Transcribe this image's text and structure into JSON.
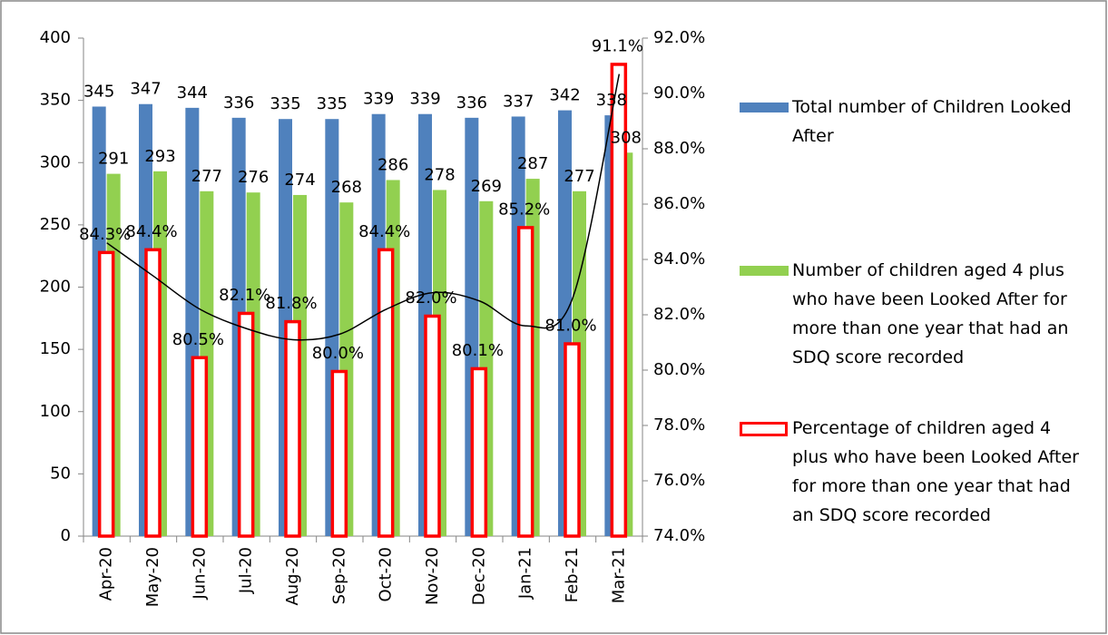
{
  "chart_data": {
    "type": "bar",
    "categories": [
      "Apr-20",
      "May-20",
      "Jun-20",
      "Jul-20",
      "Aug-20",
      "Sep-20",
      "Oct-20",
      "Nov-20",
      "Dec-20",
      "Jan-21",
      "Feb-21",
      "Mar-21"
    ],
    "series": [
      {
        "name": "Total number of Children Looked After",
        "color": "#4f81bd",
        "values": [
          345,
          347,
          344,
          336,
          335,
          335,
          339,
          339,
          336,
          337,
          342,
          338
        ]
      },
      {
        "name": "Number of children aged 4 plus who have been Looked After for more than one year that had an SDQ score recorded",
        "color": "#92d050",
        "values": [
          291,
          293,
          277,
          276,
          274,
          268,
          286,
          278,
          269,
          287,
          277,
          308
        ]
      },
      {
        "name": "Percentage of children aged 4 plus who have been Looked After for more than one year that had an SDQ score recorded",
        "color": "#ff0000",
        "axis": "y2",
        "values": [
          84.3,
          84.4,
          80.5,
          82.1,
          81.8,
          80.0,
          84.4,
          82.0,
          80.1,
          85.2,
          81.0,
          91.1
        ],
        "value_labels": [
          "84.3%",
          "84.4%",
          "80.5%",
          "82.1%",
          "81.8%",
          "80.0%",
          "84.4%",
          "82.0%",
          "80.1%",
          "85.2%",
          "81.0%",
          "91.1%"
        ]
      }
    ],
    "trendline": {
      "color": "#000000",
      "values": [
        84.6,
        83.4,
        82.2,
        81.5,
        81.1,
        81.3,
        82.2,
        82.8,
        82.5,
        81.6,
        82.6,
        90.7
      ]
    },
    "ylim": [
      0,
      400
    ],
    "yticks": [
      0,
      50,
      100,
      150,
      200,
      250,
      300,
      350,
      400
    ],
    "y2lim": [
      74,
      92
    ],
    "y2ticks": [
      {
        "value": 74,
        "label": "74.0%"
      },
      {
        "value": 76,
        "label": "76.0%"
      },
      {
        "value": 78,
        "label": "78.0%"
      },
      {
        "value": 80,
        "label": "80.0%"
      },
      {
        "value": 82,
        "label": "82.0%"
      },
      {
        "value": 84,
        "label": "84.0%"
      },
      {
        "value": 86,
        "label": "86.0%"
      },
      {
        "value": 88,
        "label": "88.0%"
      },
      {
        "value": 90,
        "label": "90.0%"
      },
      {
        "value": 92,
        "label": "92.0%"
      }
    ],
    "grid": false
  }
}
